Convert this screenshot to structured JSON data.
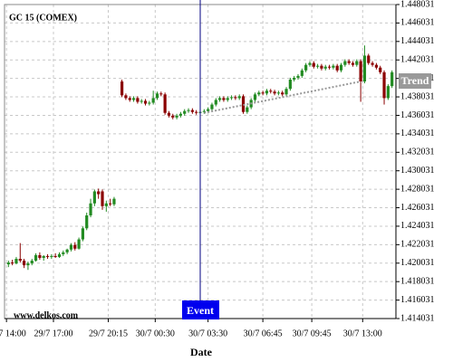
{
  "chart_data": {
    "type": "candlestick",
    "title": "GC 15 (COMEX)",
    "watermark": "www.delkos.com",
    "x_label": "Date",
    "xlim": [
      0,
      100
    ],
    "xticks": [
      {
        "value": 0.5,
        "label": "29/7 14:00"
      },
      {
        "value": 12.5,
        "label": "29/7 17:00"
      },
      {
        "value": 26.5,
        "label": "29/7 20:15"
      },
      {
        "value": 38.5,
        "label": "30/7 00:30"
      },
      {
        "value": 52,
        "label": "30/7 03:30"
      },
      {
        "value": 66,
        "label": "30/7 06:45"
      },
      {
        "value": 78.5,
        "label": "30/7 09:45"
      },
      {
        "value": 91.5,
        "label": "30/7 13:00"
      }
    ],
    "ylim": [
      1.414031,
      1.448031
    ],
    "yticks": [
      1.414031,
      1.416031,
      1.418031,
      1.420031,
      1.422031,
      1.424031,
      1.426031,
      1.428031,
      1.430031,
      1.432031,
      1.434031,
      1.436031,
      1.438031,
      1.440031,
      1.442031,
      1.444031,
      1.446031,
      1.448031
    ],
    "grid": true,
    "up_color": "#228b22",
    "down_color": "#8b0000",
    "x": [
      1,
      2,
      3,
      4,
      5,
      6,
      7,
      8,
      9,
      10,
      11,
      12,
      13,
      14,
      15,
      16,
      17,
      18,
      19,
      20,
      21,
      22,
      23,
      24,
      25,
      26,
      27,
      28,
      30,
      31,
      32,
      33,
      34,
      35,
      36,
      37,
      38,
      39,
      40,
      41,
      42,
      43,
      44,
      45,
      46,
      47,
      48,
      49,
      50,
      51,
      52,
      53,
      54,
      55,
      56,
      57,
      58,
      59,
      60,
      61,
      62,
      63,
      64,
      65,
      66,
      67,
      68,
      69,
      70,
      71,
      72,
      73,
      74,
      75,
      76,
      77,
      78,
      79,
      80,
      81,
      82,
      83,
      84,
      85,
      86,
      87,
      88,
      89,
      90,
      91,
      92,
      93,
      94,
      95,
      96,
      97,
      98,
      99
    ],
    "open": [
      1.4199,
      1.4201,
      1.42,
      1.4205,
      1.4203,
      1.4198,
      1.42,
      1.4203,
      1.4209,
      1.4206,
      1.4208,
      1.4207,
      1.4208,
      1.4207,
      1.421,
      1.4212,
      1.4215,
      1.422,
      1.4216,
      1.4226,
      1.4238,
      1.4252,
      1.4265,
      1.4278,
      1.4278,
      1.4262,
      1.4265,
      1.4264,
      1.4397,
      1.4382,
      1.4379,
      1.4377,
      1.4379,
      1.4375,
      1.4376,
      1.4373,
      1.4374,
      1.4379,
      1.4384,
      1.4383,
      1.4363,
      1.436,
      1.4358,
      1.436,
      1.4362,
      1.4365,
      1.4366,
      1.4364,
      1.4363,
      1.4364,
      1.4365,
      1.4367,
      1.4372,
      1.4377,
      1.4379,
      1.4377,
      1.4379,
      1.438,
      1.4379,
      1.4381,
      1.4364,
      1.4369,
      1.4377,
      1.4383,
      1.4385,
      1.4384,
      1.4387,
      1.4386,
      1.4384,
      1.4385,
      1.4383,
      1.4389,
      1.4399,
      1.4401,
      1.4403,
      1.4409,
      1.4415,
      1.4417,
      1.4413,
      1.4414,
      1.4411,
      1.4413,
      1.4412,
      1.4414,
      1.4409,
      1.4415,
      1.4419,
      1.4417,
      1.4415,
      1.4419,
      1.4397,
      1.4425,
      1.4417,
      1.4415,
      1.4412,
      1.4407,
      1.4379,
      1.4392
    ],
    "high": [
      1.4203,
      1.4204,
      1.4207,
      1.4222,
      1.4205,
      1.4202,
      1.4205,
      1.4211,
      1.4212,
      1.4209,
      1.421,
      1.421,
      1.4211,
      1.4212,
      1.4214,
      1.4216,
      1.4222,
      1.4223,
      1.4228,
      1.424,
      1.4255,
      1.427,
      1.428,
      1.4281,
      1.428,
      1.4268,
      1.427,
      1.4272,
      1.4399,
      1.4384,
      1.4381,
      1.4381,
      1.4381,
      1.4378,
      1.4378,
      1.4376,
      1.4387,
      1.4386,
      1.4386,
      1.4385,
      1.4365,
      1.4362,
      1.4362,
      1.4364,
      1.4367,
      1.4368,
      1.4368,
      1.4366,
      1.4366,
      1.4367,
      1.4369,
      1.4374,
      1.4379,
      1.4381,
      1.4381,
      1.4381,
      1.4382,
      1.4382,
      1.4383,
      1.4383,
      1.4371,
      1.4379,
      1.4385,
      1.4387,
      1.4387,
      1.4389,
      1.4389,
      1.4388,
      1.4387,
      1.4387,
      1.4391,
      1.4401,
      1.4403,
      1.4405,
      1.4411,
      1.4417,
      1.4419,
      1.4419,
      1.4416,
      1.4416,
      1.4415,
      1.4415,
      1.4416,
      1.4416,
      1.4417,
      1.4421,
      1.4421,
      1.4419,
      1.4421,
      1.4421,
      1.4436,
      1.4427,
      1.4419,
      1.4417,
      1.4414,
      1.4409,
      1.4394,
      1.4409
    ],
    "low": [
      1.4196,
      1.4198,
      1.4199,
      1.4201,
      1.4195,
      1.4193,
      1.4198,
      1.4202,
      1.4204,
      1.4203,
      1.4205,
      1.4205,
      1.4206,
      1.4206,
      1.4208,
      1.421,
      1.4213,
      1.4214,
      1.4215,
      1.4224,
      1.4236,
      1.425,
      1.4262,
      1.427,
      1.4258,
      1.4256,
      1.4262,
      1.4262,
      1.438,
      1.4377,
      1.4375,
      1.4375,
      1.4373,
      1.4373,
      1.4371,
      1.4371,
      1.4372,
      1.4377,
      1.4381,
      1.4361,
      1.4358,
      1.4356,
      1.4356,
      1.4358,
      1.436,
      1.4363,
      1.4362,
      1.4361,
      1.4361,
      1.4362,
      1.4363,
      1.4365,
      1.437,
      1.4375,
      1.4375,
      1.4375,
      1.4377,
      1.4377,
      1.4377,
      1.4362,
      1.4362,
      1.4367,
      1.4375,
      1.4381,
      1.4382,
      1.4382,
      1.4384,
      1.4382,
      1.4382,
      1.4381,
      1.4381,
      1.4387,
      1.4397,
      1.4399,
      1.4401,
      1.4407,
      1.4413,
      1.4411,
      1.4411,
      1.4409,
      1.4409,
      1.441,
      1.441,
      1.4407,
      1.4407,
      1.4413,
      1.4415,
      1.4413,
      1.4413,
      1.4375,
      1.4395,
      1.4415,
      1.4413,
      1.441,
      1.4405,
      1.4372,
      1.4377,
      1.439
    ],
    "close": [
      1.4201,
      1.42,
      1.4205,
      1.4203,
      1.4198,
      1.42,
      1.4203,
      1.4209,
      1.4206,
      1.4208,
      1.4207,
      1.4208,
      1.4207,
      1.421,
      1.4212,
      1.4215,
      1.422,
      1.4216,
      1.4226,
      1.4238,
      1.4252,
      1.4265,
      1.4278,
      1.4275,
      1.4262,
      1.4265,
      1.4264,
      1.427,
      1.4382,
      1.4379,
      1.4377,
      1.4379,
      1.4375,
      1.4376,
      1.4373,
      1.4374,
      1.4379,
      1.4384,
      1.4383,
      1.4363,
      1.436,
      1.4358,
      1.436,
      1.4362,
      1.4365,
      1.4366,
      1.4364,
      1.4363,
      1.4364,
      1.4365,
      1.4367,
      1.4372,
      1.4377,
      1.4379,
      1.4377,
      1.4379,
      1.438,
      1.4379,
      1.4381,
      1.4364,
      1.4369,
      1.4377,
      1.4383,
      1.4385,
      1.4384,
      1.4387,
      1.4386,
      1.4384,
      1.4385,
      1.4383,
      1.4389,
      1.4399,
      1.4401,
      1.4403,
      1.4409,
      1.4415,
      1.4417,
      1.4413,
      1.4414,
      1.4411,
      1.4413,
      1.4412,
      1.4414,
      1.4409,
      1.4415,
      1.4419,
      1.4417,
      1.4415,
      1.4419,
      1.4397,
      1.4425,
      1.4417,
      1.4415,
      1.4412,
      1.4407,
      1.4379,
      1.4392,
      1.4407
    ],
    "trend": {
      "label": "Trend",
      "color": "#999999",
      "x": [
        51,
        91
      ],
      "values": [
        1.4363,
        1.4397
      ]
    },
    "event": {
      "label": "Event",
      "color": "#0000ee",
      "x": 50
    }
  }
}
